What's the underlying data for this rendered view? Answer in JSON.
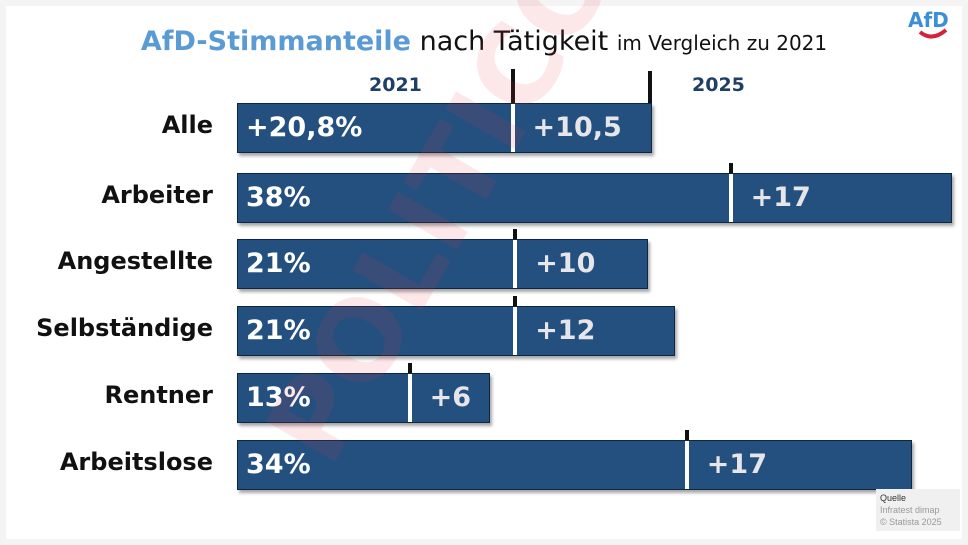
{
  "title": {
    "highlight": "AfD-Stimmanteile",
    "main": "nach Tätigkeit",
    "suffix": "im Vergleich zu 2021"
  },
  "logo": "AfD",
  "watermark": "POLITICO",
  "colors": {
    "bar": "#23507f",
    "title_accent": "#5b9bd5",
    "year_label": "#1f3f66"
  },
  "chart_data": {
    "type": "bar",
    "stacked": true,
    "legend": [
      "2021",
      "2025"
    ],
    "categories": [
      "Alle",
      "Arbeiter",
      "Angestellte",
      "Selbständige",
      "Rentner",
      "Arbeitslose"
    ],
    "series": [
      {
        "name": "2021",
        "values": [
          20.8,
          38,
          21,
          21,
          13,
          34
        ],
        "labels": [
          "+20,8%",
          "38%",
          "21%",
          "21%",
          "13%",
          "34%"
        ]
      },
      {
        "name": "2025",
        "values": [
          10.5,
          17,
          10,
          12,
          6,
          17
        ],
        "labels": [
          "+10,5",
          "+17",
          "+10",
          "+12",
          "+6",
          "+17"
        ]
      }
    ]
  },
  "source": {
    "heading": "Quelle",
    "line1": "Infratest dimap",
    "line2": "© Statista 2025"
  }
}
